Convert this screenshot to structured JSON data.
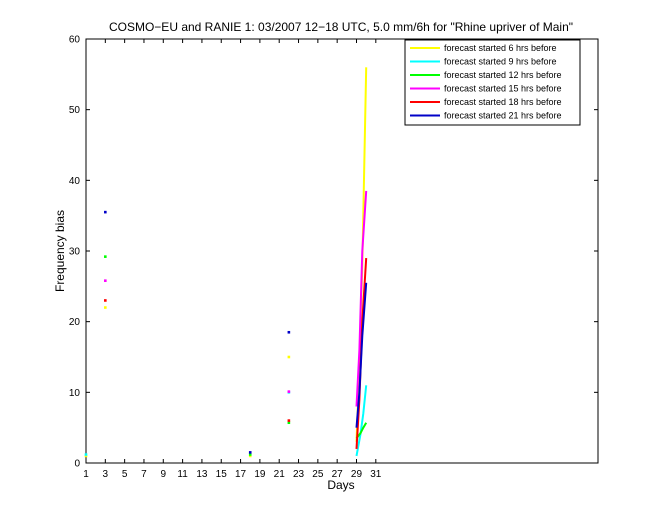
{
  "chart_data": {
    "type": "line",
    "title": "COSMO−EU and RANIE 1: 03/2007 12−18 UTC, 5.0 mm/6h for \"Rhine upriver of Main\"",
    "xlabel": "Days",
    "ylabel": "Frequency bias",
    "xlim": [
      1,
      54
    ],
    "ylim": [
      0,
      60
    ],
    "x_ticks": [
      1,
      3,
      5,
      7,
      9,
      11,
      13,
      15,
      17,
      19,
      21,
      23,
      25,
      27,
      29,
      31
    ],
    "y_ticks": [
      0,
      10,
      20,
      30,
      40,
      50,
      60
    ],
    "grid": false,
    "legend_position": "top-right",
    "series": [
      {
        "name": "forecast started 6 hrs before",
        "color": "#ffff00",
        "points": [
          [
            1,
            1.0
          ],
          [
            3,
            22.0
          ],
          [
            18,
            1.0
          ],
          [
            22,
            15.0
          ]
        ],
        "line": [
          [
            29,
            3.0
          ],
          [
            29.3,
            14.0
          ],
          [
            29.6,
            28.0
          ],
          [
            30,
            56.0
          ]
        ]
      },
      {
        "name": "forecast started 9 hrs before",
        "color": "#00ffff",
        "points": [
          [
            1,
            1.2
          ],
          [
            22,
            10.0
          ]
        ],
        "line": [
          [
            29,
            1.0
          ],
          [
            29.4,
            4.0
          ],
          [
            29.7,
            7.0
          ],
          [
            30,
            11.0
          ]
        ]
      },
      {
        "name": "forecast started 12 hrs before",
        "color": "#00ff00",
        "points": [
          [
            3,
            29.2
          ],
          [
            18,
            1.2
          ],
          [
            22,
            5.7
          ]
        ],
        "line": [
          [
            29,
            3.5
          ],
          [
            29.4,
            4.2
          ],
          [
            29.7,
            5.0
          ],
          [
            30,
            5.7
          ]
        ]
      },
      {
        "name": "forecast started 15 hrs before",
        "color": "#ff00ff",
        "points": [
          [
            3,
            25.8
          ],
          [
            22,
            10.1
          ]
        ],
        "line": [
          [
            29,
            8.0
          ],
          [
            29.3,
            16.0
          ],
          [
            29.6,
            30.0
          ],
          [
            30,
            38.5
          ]
        ]
      },
      {
        "name": "forecast started 18 hrs before",
        "color": "#ff0000",
        "points": [
          [
            3,
            23.0
          ],
          [
            22,
            6.0
          ]
        ],
        "line": [
          [
            29,
            2.0
          ],
          [
            29.3,
            9.0
          ],
          [
            29.6,
            20.0
          ],
          [
            30,
            29.0
          ]
        ]
      },
      {
        "name": "forecast started 21 hrs before",
        "color": "#0000c8",
        "points": [
          [
            3,
            35.5
          ],
          [
            18,
            1.5
          ],
          [
            22,
            18.5
          ]
        ],
        "line": [
          [
            29,
            5.0
          ],
          [
            29.3,
            10.0
          ],
          [
            29.6,
            18.0
          ],
          [
            30,
            25.5
          ]
        ]
      }
    ]
  }
}
